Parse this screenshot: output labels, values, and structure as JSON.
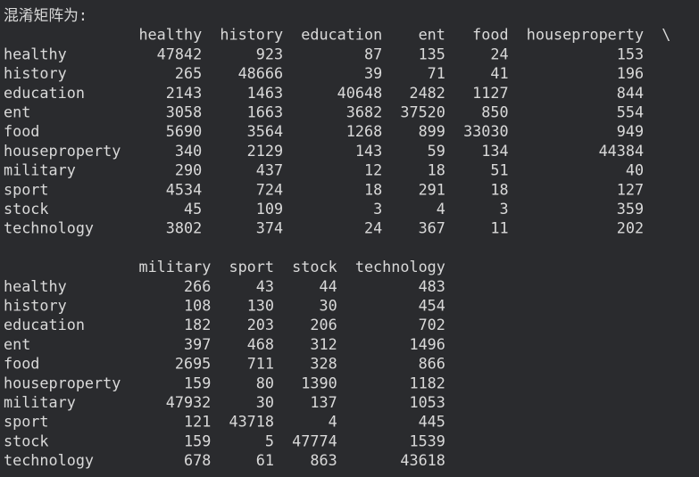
{
  "title": "混淆矩阵为:",
  "blocks": [
    {
      "columns": [
        "healthy",
        "history",
        "education",
        "ent",
        "food",
        "houseproperty"
      ],
      "continuation": "\\",
      "rows": [
        {
          "label": "healthy",
          "values": [
            47842,
            923,
            87,
            135,
            24,
            153
          ]
        },
        {
          "label": "history",
          "values": [
            265,
            48666,
            39,
            71,
            41,
            196
          ]
        },
        {
          "label": "education",
          "values": [
            2143,
            1463,
            40648,
            2482,
            1127,
            844
          ]
        },
        {
          "label": "ent",
          "values": [
            3058,
            1663,
            3682,
            37520,
            850,
            554
          ]
        },
        {
          "label": "food",
          "values": [
            5690,
            3564,
            1268,
            899,
            33030,
            949
          ]
        },
        {
          "label": "houseproperty",
          "values": [
            340,
            2129,
            143,
            59,
            134,
            44384
          ]
        },
        {
          "label": "military",
          "values": [
            290,
            437,
            12,
            18,
            51,
            40
          ]
        },
        {
          "label": "sport",
          "values": [
            4534,
            724,
            18,
            291,
            18,
            127
          ]
        },
        {
          "label": "stock",
          "values": [
            45,
            109,
            3,
            4,
            3,
            359
          ]
        },
        {
          "label": "technology",
          "values": [
            3802,
            374,
            24,
            367,
            11,
            202
          ]
        }
      ]
    },
    {
      "columns": [
        "military",
        "sport",
        "stock",
        "technology"
      ],
      "rows": [
        {
          "label": "healthy",
          "values": [
            266,
            43,
            44,
            483
          ]
        },
        {
          "label": "history",
          "values": [
            108,
            130,
            30,
            454
          ]
        },
        {
          "label": "education",
          "values": [
            182,
            203,
            206,
            702
          ]
        },
        {
          "label": "ent",
          "values": [
            397,
            468,
            312,
            1496
          ]
        },
        {
          "label": "food",
          "values": [
            2695,
            711,
            328,
            866
          ]
        },
        {
          "label": "houseproperty",
          "values": [
            159,
            80,
            1390,
            1182
          ]
        },
        {
          "label": "military",
          "values": [
            47932,
            30,
            137,
            1053
          ]
        },
        {
          "label": "sport",
          "values": [
            121,
            43718,
            4,
            445
          ]
        },
        {
          "label": "stock",
          "values": [
            159,
            5,
            47774,
            1539
          ]
        },
        {
          "label": "technology",
          "values": [
            678,
            61,
            863,
            43618
          ]
        }
      ]
    }
  ]
}
